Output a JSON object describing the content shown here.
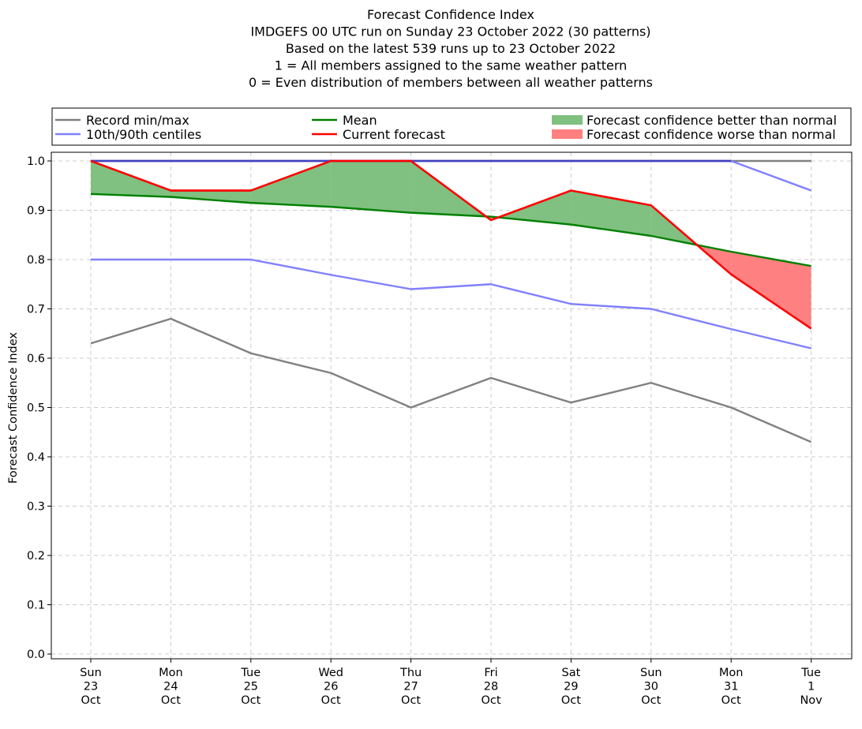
{
  "chart_data": {
    "type": "line",
    "title_lines": [
      "Forecast Confidence Index",
      "IMDGEFS 00 UTC run on Sunday 23 October 2022 (30 patterns)",
      "Based on the latest 539 runs up to 23 October 2022",
      "1 = All members assigned to the same weather pattern",
      "0 = Even distribution of members between all weather patterns"
    ],
    "ylabel": "Forecast Confidence Index",
    "xlabel": "",
    "ylim": [
      0,
      1
    ],
    "yticks": [
      "0.0",
      "0.1",
      "0.2",
      "0.3",
      "0.4",
      "0.5",
      "0.6",
      "0.7",
      "0.8",
      "0.9",
      "1.0"
    ],
    "categories": [
      [
        "Sun",
        "23",
        "Oct"
      ],
      [
        "Mon",
        "24",
        "Oct"
      ],
      [
        "Tue",
        "25",
        "Oct"
      ],
      [
        "Wed",
        "26",
        "Oct"
      ],
      [
        "Thu",
        "27",
        "Oct"
      ],
      [
        "Fri",
        "28",
        "Oct"
      ],
      [
        "Sat",
        "29",
        "Oct"
      ],
      [
        "Sun",
        "30",
        "Oct"
      ],
      [
        "Mon",
        "31",
        "Oct"
      ],
      [
        "Tue",
        "1",
        "Nov"
      ]
    ],
    "grid": true,
    "legend_position": "top",
    "series": [
      {
        "key": "record_min",
        "color": "#808080",
        "values": [
          0.63,
          0.68,
          0.61,
          0.57,
          0.5,
          0.56,
          0.51,
          0.55,
          0.5,
          0.43
        ]
      },
      {
        "key": "record_max",
        "color": "#808080",
        "values": [
          1.0,
          1.0,
          1.0,
          1.0,
          1.0,
          1.0,
          1.0,
          1.0,
          1.0,
          1.0
        ]
      },
      {
        "key": "p10",
        "color": "#8080ff",
        "values": [
          0.8,
          0.8,
          0.8,
          0.769,
          0.74,
          0.75,
          0.71,
          0.7,
          0.659,
          0.62
        ]
      },
      {
        "key": "p90",
        "color": "#8080ff",
        "values": [
          1.0,
          1.0,
          1.0,
          1.0,
          1.0,
          1.0,
          1.0,
          1.0,
          1.0,
          0.94
        ]
      },
      {
        "key": "mean",
        "color": "#008000",
        "values": [
          0.933,
          0.927,
          0.915,
          0.907,
          0.895,
          0.887,
          0.871,
          0.848,
          0.816,
          0.787
        ]
      },
      {
        "key": "current",
        "color": "#ff0000",
        "values": [
          1.0,
          0.94,
          0.94,
          1.0,
          1.0,
          0.88,
          0.94,
          0.91,
          0.77,
          0.66
        ]
      }
    ],
    "legend": [
      {
        "label": "Record min/max",
        "kind": "line",
        "color": "#808080"
      },
      {
        "label": "10th/90th centiles",
        "kind": "line",
        "color": "#8080ff"
      },
      {
        "label": "Mean",
        "kind": "line",
        "color": "#008000"
      },
      {
        "label": "Current forecast",
        "kind": "line",
        "color": "#ff0000"
      },
      {
        "label": "Forecast confidence better than normal",
        "kind": "patch",
        "color": "#80c080"
      },
      {
        "label": "Forecast confidence worse than normal",
        "kind": "patch",
        "color": "#ff8080"
      }
    ],
    "fill_better_color": "#80c080",
    "fill_worse_color": "#ff8080",
    "combined_max_line_color": "#4040c0"
  }
}
